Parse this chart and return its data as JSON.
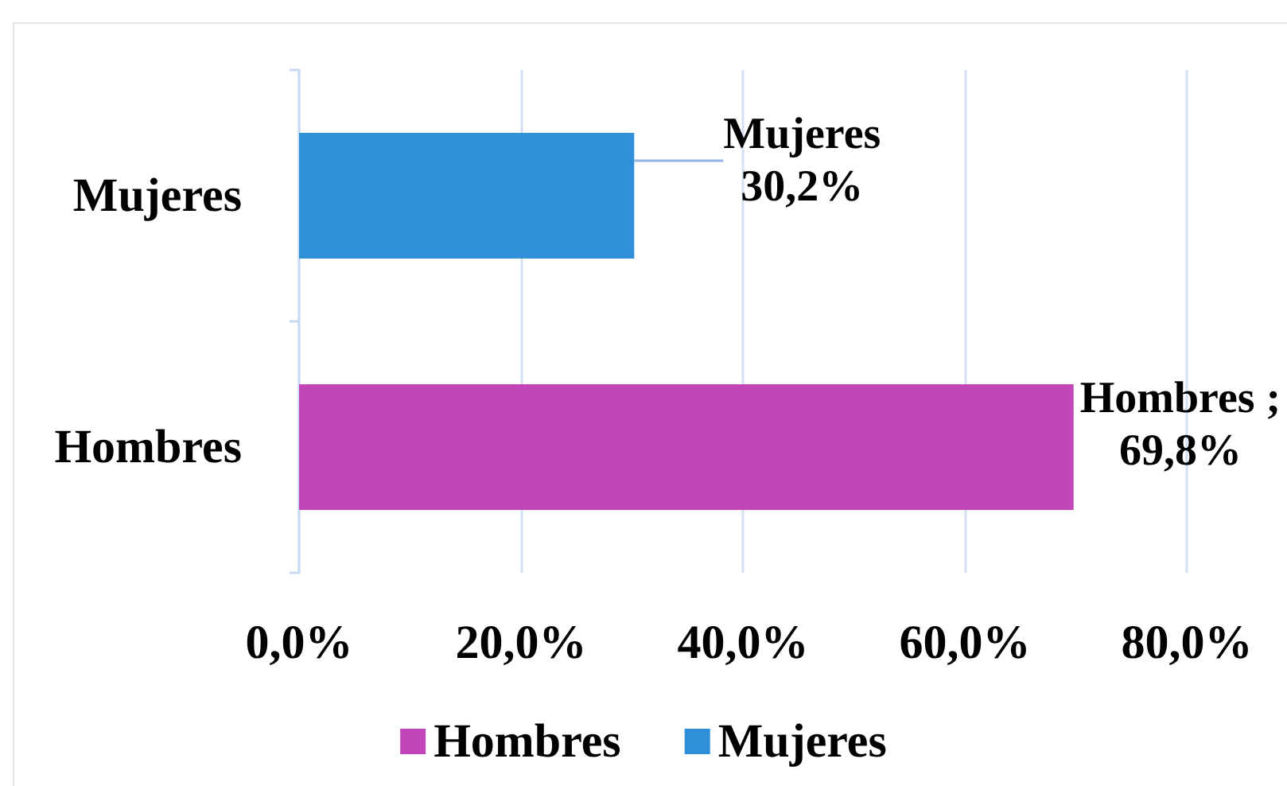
{
  "chart_data": {
    "type": "bar",
    "orientation": "horizontal",
    "categories": [
      "Mujeres",
      "Hombres"
    ],
    "series": [
      {
        "name": "Hombres",
        "color": "#c346b9",
        "values": [
          null,
          69.8
        ],
        "value_labels": [
          null,
          "Hombres ;\n69,8%"
        ]
      },
      {
        "name": "Mujeres",
        "color": "#2f8fd8",
        "values": [
          30.2,
          null
        ],
        "value_labels": [
          "Mujeres\n30,2%",
          null
        ]
      }
    ],
    "xlim": [
      0,
      80
    ],
    "xticks": [
      {
        "value": 0,
        "label": "0,0%"
      },
      {
        "value": 20,
        "label": "20,0%"
      },
      {
        "value": 40,
        "label": "40,0%"
      },
      {
        "value": 60,
        "label": "60,0%"
      },
      {
        "value": 80,
        "label": "80,0%"
      }
    ],
    "grid": "x",
    "legend": "bottom"
  }
}
